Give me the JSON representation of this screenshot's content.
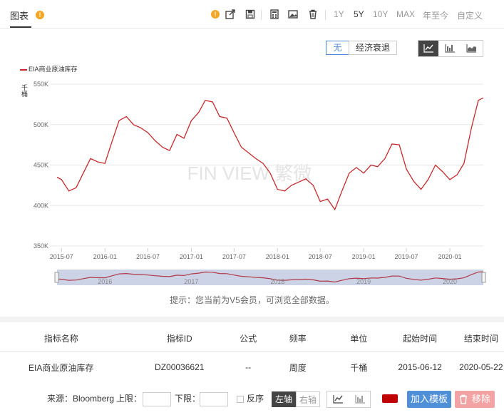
{
  "header": {
    "tab_label": "图表",
    "ranges": [
      "1Y",
      "5Y",
      "10Y",
      "MAX",
      "年至今",
      "自定义"
    ],
    "active_range": "5Y"
  },
  "toolbar": {
    "icons": [
      "warning-icon",
      "export-icon",
      "save-icon",
      "calculator-icon",
      "image-icon",
      "trash-icon"
    ]
  },
  "filter": {
    "none_label": "无",
    "recession_label": "经济衰退"
  },
  "colors": {
    "series": "#c8282b",
    "accent": "#4f8fd8",
    "swatch": "#c00000"
  },
  "chart_data": {
    "type": "line",
    "series": [
      {
        "name": "EIA商业原油库存",
        "values": [
          [
            "2015-06-12",
            435
          ],
          [
            "2015-07-01",
            432
          ],
          [
            "2015-08-01",
            418
          ],
          [
            "2015-09-01",
            422
          ],
          [
            "2015-10-01",
            440
          ],
          [
            "2015-11-01",
            458
          ],
          [
            "2015-12-01",
            454
          ],
          [
            "2016-01-01",
            452
          ],
          [
            "2016-02-01",
            480
          ],
          [
            "2016-03-01",
            505
          ],
          [
            "2016-04-01",
            510
          ],
          [
            "2016-05-01",
            500
          ],
          [
            "2016-06-01",
            496
          ],
          [
            "2016-07-01",
            490
          ],
          [
            "2016-08-01",
            480
          ],
          [
            "2016-09-01",
            472
          ],
          [
            "2016-10-01",
            468
          ],
          [
            "2016-11-01",
            488
          ],
          [
            "2016-12-01",
            483
          ],
          [
            "2017-01-01",
            505
          ],
          [
            "2017-02-01",
            515
          ],
          [
            "2017-03-01",
            530
          ],
          [
            "2017-04-01",
            528
          ],
          [
            "2017-05-01",
            510
          ],
          [
            "2017-06-01",
            508
          ],
          [
            "2017-07-01",
            490
          ],
          [
            "2017-08-01",
            472
          ],
          [
            "2017-09-01",
            465
          ],
          [
            "2017-10-01",
            458
          ],
          [
            "2017-11-01",
            452
          ],
          [
            "2017-12-01",
            440
          ],
          [
            "2018-01-01",
            420
          ],
          [
            "2018-02-01",
            418
          ],
          [
            "2018-03-01",
            425
          ],
          [
            "2018-04-01",
            429
          ],
          [
            "2018-05-01",
            433
          ],
          [
            "2018-06-01",
            425
          ],
          [
            "2018-07-01",
            405
          ],
          [
            "2018-08-01",
            408
          ],
          [
            "2018-09-01",
            395
          ],
          [
            "2018-10-01",
            418
          ],
          [
            "2018-11-01",
            440
          ],
          [
            "2018-12-01",
            447
          ],
          [
            "2019-01-01",
            440
          ],
          [
            "2019-02-01",
            450
          ],
          [
            "2019-03-01",
            448
          ],
          [
            "2019-04-01",
            458
          ],
          [
            "2019-05-01",
            476
          ],
          [
            "2019-06-01",
            475
          ],
          [
            "2019-07-01",
            445
          ],
          [
            "2019-08-01",
            430
          ],
          [
            "2019-09-01",
            420
          ],
          [
            "2019-10-01",
            432
          ],
          [
            "2019-11-01",
            450
          ],
          [
            "2019-12-01",
            442
          ],
          [
            "2020-01-01",
            432
          ],
          [
            "2020-02-01",
            438
          ],
          [
            "2020-03-01",
            452
          ],
          [
            "2020-04-01",
            495
          ],
          [
            "2020-05-01",
            530
          ],
          [
            "2020-05-22",
            533
          ]
        ]
      }
    ],
    "ylabel": "千桶",
    "ylim": [
      350,
      550
    ],
    "yticks": [
      "350K",
      "400K",
      "450K",
      "500K",
      "550K"
    ],
    "xticks": [
      "2015-07",
      "2016-01",
      "2016-07",
      "2017-01",
      "2017-07",
      "2018-01",
      "2018-07",
      "2019-01",
      "2019-07",
      "2020-01"
    ],
    "navigator_labels": [
      "2016",
      "2017",
      "2018",
      "2019",
      "2020"
    ],
    "grid": true,
    "legend": "top-left"
  },
  "watermark": "FIN VIEW 繁微",
  "tip": "提示：您当前为V5会员，可浏览全部数据。",
  "table": {
    "headers": [
      "指标名称",
      "指标ID",
      "公式",
      "频率",
      "单位",
      "起始时间",
      "结束时间"
    ],
    "rows": [
      [
        "EIA商业原油库存",
        "DZ00036621",
        "--",
        "周度",
        "千桶",
        "2015-06-12",
        "2020-05-22"
      ]
    ]
  },
  "controls": {
    "source": "来源：Bloomberg",
    "upper": "上限：",
    "lower": "下限：",
    "reverse": "反序",
    "left_axis": "左轴",
    "right_axis": "右轴",
    "add_template": "加入模板",
    "remove": "移除"
  }
}
